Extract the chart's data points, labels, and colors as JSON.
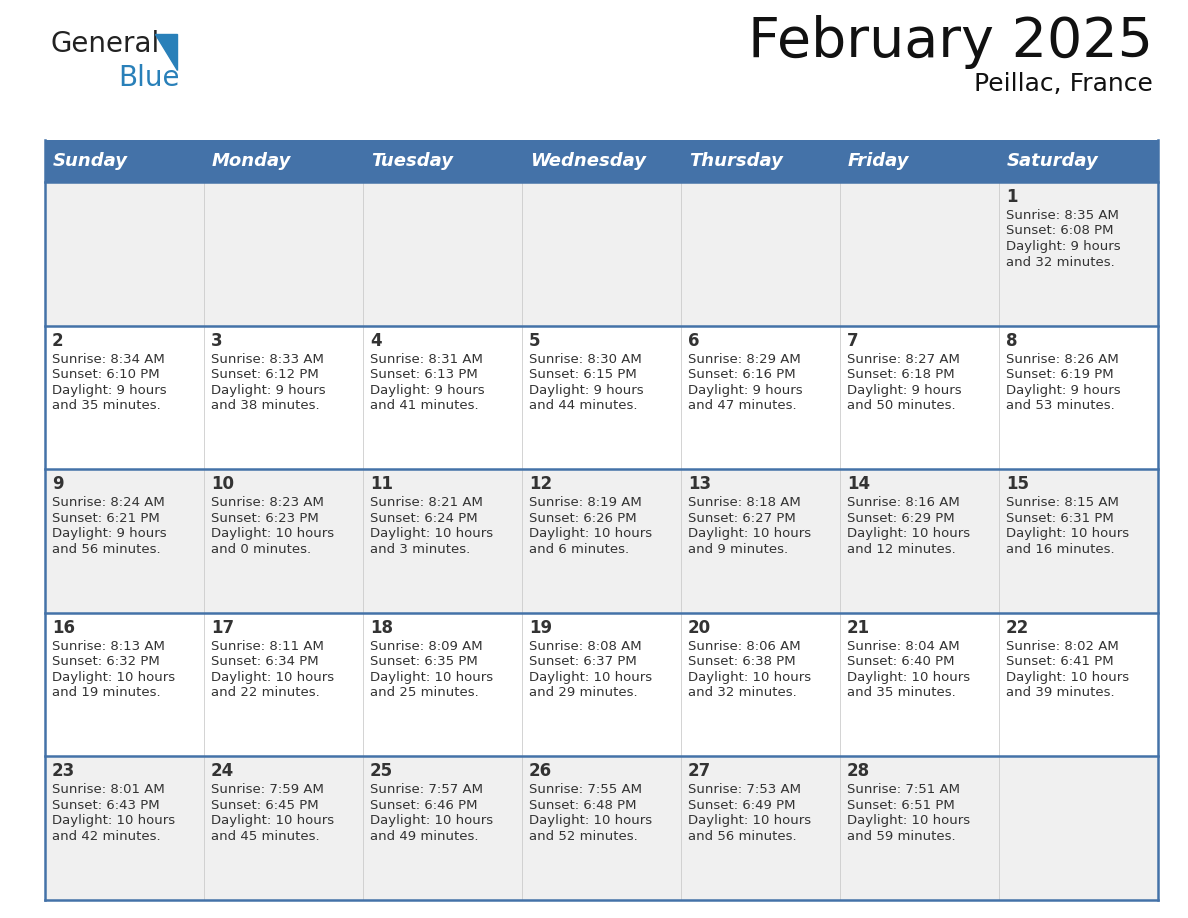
{
  "title": "February 2025",
  "subtitle": "Peillac, France",
  "days_of_week": [
    "Sunday",
    "Monday",
    "Tuesday",
    "Wednesday",
    "Thursday",
    "Friday",
    "Saturday"
  ],
  "header_bg": "#4472A8",
  "header_text": "#FFFFFF",
  "cell_bg_light": "#F0F0F0",
  "cell_bg_white": "#FFFFFF",
  "separator_color": "#4472A8",
  "text_color": "#333333",
  "title_color": "#111111",
  "logo_general_color": "#222222",
  "logo_blue_color": "#2980B9",
  "logo_triangle_color": "#2980B9",
  "calendar_data": [
    {
      "day": 1,
      "col": 6,
      "row": 0,
      "sunrise": "8:35 AM",
      "sunset": "6:08 PM",
      "daylight_h": "9 hours",
      "daylight_m": "and 32 minutes."
    },
    {
      "day": 2,
      "col": 0,
      "row": 1,
      "sunrise": "8:34 AM",
      "sunset": "6:10 PM",
      "daylight_h": "9 hours",
      "daylight_m": "and 35 minutes."
    },
    {
      "day": 3,
      "col": 1,
      "row": 1,
      "sunrise": "8:33 AM",
      "sunset": "6:12 PM",
      "daylight_h": "9 hours",
      "daylight_m": "and 38 minutes."
    },
    {
      "day": 4,
      "col": 2,
      "row": 1,
      "sunrise": "8:31 AM",
      "sunset": "6:13 PM",
      "daylight_h": "9 hours",
      "daylight_m": "and 41 minutes."
    },
    {
      "day": 5,
      "col": 3,
      "row": 1,
      "sunrise": "8:30 AM",
      "sunset": "6:15 PM",
      "daylight_h": "9 hours",
      "daylight_m": "and 44 minutes."
    },
    {
      "day": 6,
      "col": 4,
      "row": 1,
      "sunrise": "8:29 AM",
      "sunset": "6:16 PM",
      "daylight_h": "9 hours",
      "daylight_m": "and 47 minutes."
    },
    {
      "day": 7,
      "col": 5,
      "row": 1,
      "sunrise": "8:27 AM",
      "sunset": "6:18 PM",
      "daylight_h": "9 hours",
      "daylight_m": "and 50 minutes."
    },
    {
      "day": 8,
      "col": 6,
      "row": 1,
      "sunrise": "8:26 AM",
      "sunset": "6:19 PM",
      "daylight_h": "9 hours",
      "daylight_m": "and 53 minutes."
    },
    {
      "day": 9,
      "col": 0,
      "row": 2,
      "sunrise": "8:24 AM",
      "sunset": "6:21 PM",
      "daylight_h": "9 hours",
      "daylight_m": "and 56 minutes."
    },
    {
      "day": 10,
      "col": 1,
      "row": 2,
      "sunrise": "8:23 AM",
      "sunset": "6:23 PM",
      "daylight_h": "10 hours",
      "daylight_m": "and 0 minutes."
    },
    {
      "day": 11,
      "col": 2,
      "row": 2,
      "sunrise": "8:21 AM",
      "sunset": "6:24 PM",
      "daylight_h": "10 hours",
      "daylight_m": "and 3 minutes."
    },
    {
      "day": 12,
      "col": 3,
      "row": 2,
      "sunrise": "8:19 AM",
      "sunset": "6:26 PM",
      "daylight_h": "10 hours",
      "daylight_m": "and 6 minutes."
    },
    {
      "day": 13,
      "col": 4,
      "row": 2,
      "sunrise": "8:18 AM",
      "sunset": "6:27 PM",
      "daylight_h": "10 hours",
      "daylight_m": "and 9 minutes."
    },
    {
      "day": 14,
      "col": 5,
      "row": 2,
      "sunrise": "8:16 AM",
      "sunset": "6:29 PM",
      "daylight_h": "10 hours",
      "daylight_m": "and 12 minutes."
    },
    {
      "day": 15,
      "col": 6,
      "row": 2,
      "sunrise": "8:15 AM",
      "sunset": "6:31 PM",
      "daylight_h": "10 hours",
      "daylight_m": "and 16 minutes."
    },
    {
      "day": 16,
      "col": 0,
      "row": 3,
      "sunrise": "8:13 AM",
      "sunset": "6:32 PM",
      "daylight_h": "10 hours",
      "daylight_m": "and 19 minutes."
    },
    {
      "day": 17,
      "col": 1,
      "row": 3,
      "sunrise": "8:11 AM",
      "sunset": "6:34 PM",
      "daylight_h": "10 hours",
      "daylight_m": "and 22 minutes."
    },
    {
      "day": 18,
      "col": 2,
      "row": 3,
      "sunrise": "8:09 AM",
      "sunset": "6:35 PM",
      "daylight_h": "10 hours",
      "daylight_m": "and 25 minutes."
    },
    {
      "day": 19,
      "col": 3,
      "row": 3,
      "sunrise": "8:08 AM",
      "sunset": "6:37 PM",
      "daylight_h": "10 hours",
      "daylight_m": "and 29 minutes."
    },
    {
      "day": 20,
      "col": 4,
      "row": 3,
      "sunrise": "8:06 AM",
      "sunset": "6:38 PM",
      "daylight_h": "10 hours",
      "daylight_m": "and 32 minutes."
    },
    {
      "day": 21,
      "col": 5,
      "row": 3,
      "sunrise": "8:04 AM",
      "sunset": "6:40 PM",
      "daylight_h": "10 hours",
      "daylight_m": "and 35 minutes."
    },
    {
      "day": 22,
      "col": 6,
      "row": 3,
      "sunrise": "8:02 AM",
      "sunset": "6:41 PM",
      "daylight_h": "10 hours",
      "daylight_m": "and 39 minutes."
    },
    {
      "day": 23,
      "col": 0,
      "row": 4,
      "sunrise": "8:01 AM",
      "sunset": "6:43 PM",
      "daylight_h": "10 hours",
      "daylight_m": "and 42 minutes."
    },
    {
      "day": 24,
      "col": 1,
      "row": 4,
      "sunrise": "7:59 AM",
      "sunset": "6:45 PM",
      "daylight_h": "10 hours",
      "daylight_m": "and 45 minutes."
    },
    {
      "day": 25,
      "col": 2,
      "row": 4,
      "sunrise": "7:57 AM",
      "sunset": "6:46 PM",
      "daylight_h": "10 hours",
      "daylight_m": "and 49 minutes."
    },
    {
      "day": 26,
      "col": 3,
      "row": 4,
      "sunrise": "7:55 AM",
      "sunset": "6:48 PM",
      "daylight_h": "10 hours",
      "daylight_m": "and 52 minutes."
    },
    {
      "day": 27,
      "col": 4,
      "row": 4,
      "sunrise": "7:53 AM",
      "sunset": "6:49 PM",
      "daylight_h": "10 hours",
      "daylight_m": "and 56 minutes."
    },
    {
      "day": 28,
      "col": 5,
      "row": 4,
      "sunrise": "7:51 AM",
      "sunset": "6:51 PM",
      "daylight_h": "10 hours",
      "daylight_m": "and 59 minutes."
    }
  ]
}
